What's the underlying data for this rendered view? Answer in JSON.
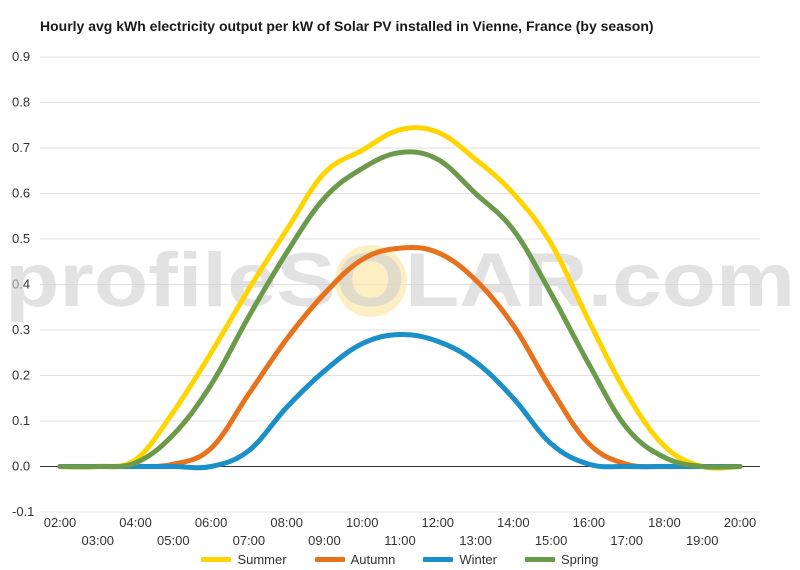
{
  "chart_data": {
    "type": "line",
    "title": "Hourly avg kWh electricity output per kW of Solar PV installed in Vienne, France (by season)",
    "watermark": "profileSOLAR.com",
    "xlabel": "",
    "ylabel": "",
    "ylim": [
      -0.1,
      0.9
    ],
    "yticks": [
      "-0.1",
      "0.0",
      "0.1",
      "0.2",
      "0.3",
      "0.4",
      "0.5",
      "0.6",
      "0.7",
      "0.8",
      "0.9"
    ],
    "categories": [
      "02:00",
      "03:00",
      "04:00",
      "05:00",
      "06:00",
      "07:00",
      "08:00",
      "09:00",
      "10:00",
      "11:00",
      "12:00",
      "13:00",
      "14:00",
      "15:00",
      "16:00",
      "17:00",
      "18:00",
      "19:00",
      "20:00"
    ],
    "grid": true,
    "legend_position": "bottom",
    "series": [
      {
        "name": "Summer",
        "color": "#ffd400",
        "values": [
          0.0,
          0.0,
          0.015,
          0.12,
          0.25,
          0.39,
          0.52,
          0.645,
          0.695,
          0.74,
          0.735,
          0.675,
          0.6,
          0.49,
          0.32,
          0.16,
          0.045,
          0.0,
          0.0
        ]
      },
      {
        "name": "Autumn",
        "color": "#e8711c",
        "values": [
          0.0,
          0.0,
          0.0,
          0.005,
          0.04,
          0.16,
          0.28,
          0.38,
          0.455,
          0.48,
          0.47,
          0.41,
          0.31,
          0.17,
          0.05,
          0.005,
          0.0,
          0.0,
          0.0
        ]
      },
      {
        "name": "Winter",
        "color": "#1b8fc7",
        "values": [
          0.0,
          0.0,
          0.0,
          0.0,
          0.0,
          0.035,
          0.13,
          0.21,
          0.27,
          0.29,
          0.275,
          0.23,
          0.15,
          0.05,
          0.005,
          0.0,
          0.0,
          0.0,
          0.0
        ]
      },
      {
        "name": "Spring",
        "color": "#6b9a4a",
        "values": [
          0.0,
          0.0,
          0.008,
          0.07,
          0.18,
          0.33,
          0.47,
          0.59,
          0.655,
          0.69,
          0.675,
          0.6,
          0.52,
          0.38,
          0.225,
          0.085,
          0.02,
          0.0,
          0.0
        ]
      }
    ]
  }
}
